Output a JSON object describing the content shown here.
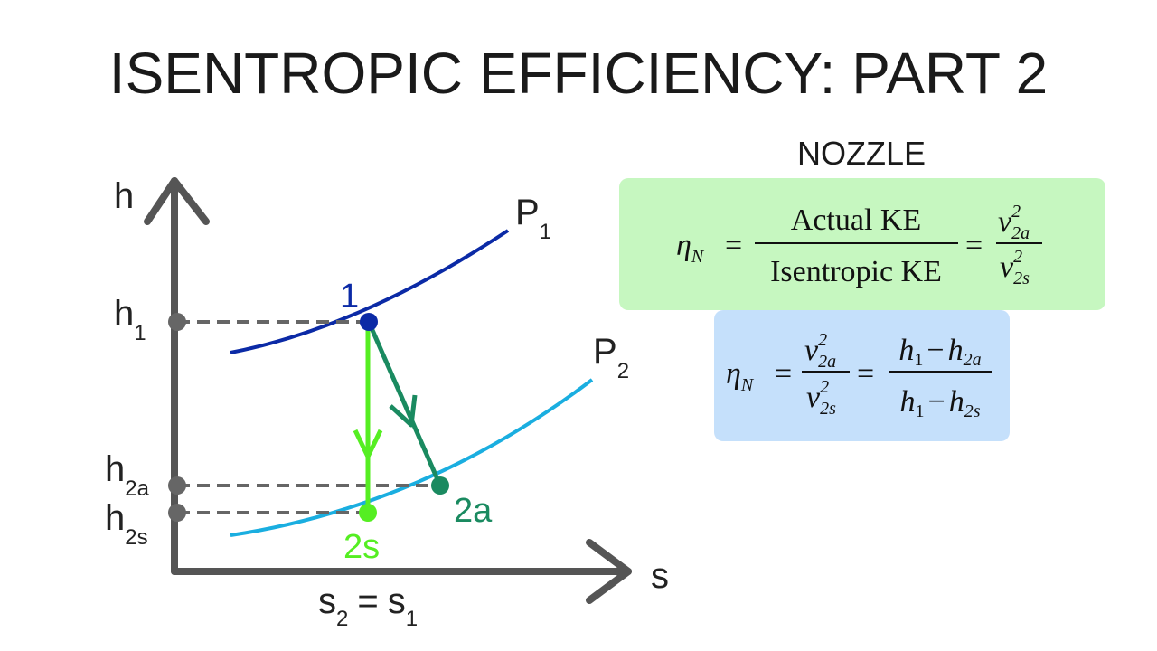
{
  "title": "ISENTROPIC EFFICIENCY: PART 2",
  "diagram": {
    "y_axis": "h",
    "x_axis": "s",
    "curves": [
      {
        "base": "P",
        "sub": "1"
      },
      {
        "base": "P",
        "sub": "2"
      }
    ],
    "states": [
      "1",
      "2s",
      "2a"
    ],
    "h_levels": [
      {
        "base": "h",
        "sub": "1"
      },
      {
        "base": "h",
        "sub": "2a"
      },
      {
        "base": "h",
        "sub": "2s"
      }
    ],
    "s_relation": {
      "left": "s",
      "left_sub": "2",
      "op": "=",
      "right": "s",
      "right_sub": "1"
    }
  },
  "panel": {
    "heading": "NOZZLE",
    "formula1": {
      "eta": "η",
      "eta_sub": "N",
      "eq1": "=",
      "num": "Actual KE",
      "den": "Isentropic KE",
      "eq2": "=",
      "num2": {
        "base": "v",
        "sub": "2a",
        "sup": "2"
      },
      "den2": {
        "base": "v",
        "sub": "2s",
        "sup": "2"
      }
    },
    "formula2": {
      "eta": "η",
      "eta_sub": "N",
      "eq1": "=",
      "num": {
        "base": "v",
        "sub": "2a",
        "sup": "2"
      },
      "den": {
        "base": "v",
        "sub": "2s",
        "sup": "2"
      },
      "eq2": "=",
      "num2": {
        "a": "h",
        "a_sub": "1",
        "op": "−",
        "b": "h",
        "b_sub": "2a"
      },
      "den2": {
        "a": "h",
        "a_sub": "1",
        "op": "−",
        "b": "h",
        "b_sub": "2s"
      }
    }
  }
}
